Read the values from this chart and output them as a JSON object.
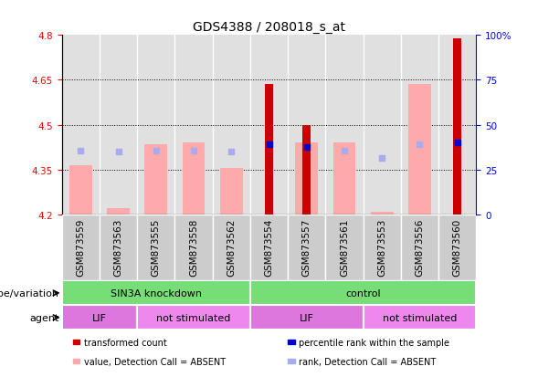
{
  "title": "GDS4388 / 208018_s_at",
  "samples": [
    "GSM873559",
    "GSM873563",
    "GSM873555",
    "GSM873558",
    "GSM873562",
    "GSM873554",
    "GSM873557",
    "GSM873561",
    "GSM873553",
    "GSM873556",
    "GSM873560"
  ],
  "ylim": [
    4.2,
    4.8
  ],
  "yticks": [
    4.2,
    4.35,
    4.5,
    4.65,
    4.8
  ],
  "ytick_labels": [
    "4.2",
    "4.35",
    "4.5",
    "4.65",
    "4.8"
  ],
  "y2ticks": [
    0,
    25,
    50,
    75,
    100
  ],
  "y2tick_labels": [
    "0",
    "25",
    "50",
    "75",
    "100%"
  ],
  "bar_bottom": 4.2,
  "red_bars": {
    "values": [
      null,
      null,
      null,
      null,
      null,
      4.635,
      4.5,
      null,
      null,
      null,
      4.79
    ],
    "color": "#cc0000"
  },
  "pink_bars": {
    "values": [
      4.365,
      4.22,
      4.435,
      4.44,
      4.355,
      null,
      4.44,
      4.44,
      4.21,
      4.635,
      null
    ],
    "color": "#ffaaaa"
  },
  "blue_squares_absent": {
    "indices": [
      0,
      1,
      2,
      3,
      4,
      7,
      8,
      9
    ],
    "values": [
      4.415,
      4.41,
      4.415,
      4.415,
      4.41,
      4.415,
      4.39,
      4.435
    ],
    "color": "#aaaaee"
  },
  "blue_squares_present": {
    "indices": [
      5,
      6,
      10
    ],
    "values": [
      4.435,
      4.425,
      4.44
    ],
    "color": "#0000cc"
  },
  "genotype_groups": [
    {
      "label": "SIN3A knockdown",
      "start": 0,
      "end": 5,
      "color": "#77dd77"
    },
    {
      "label": "control",
      "start": 5,
      "end": 11,
      "color": "#77dd77"
    }
  ],
  "agent_groups": [
    {
      "label": "LIF",
      "start": 0,
      "end": 2,
      "color": "#dd77dd"
    },
    {
      "label": "not stimulated",
      "start": 2,
      "end": 5,
      "color": "#ee88ee"
    },
    {
      "label": "LIF",
      "start": 5,
      "end": 8,
      "color": "#dd77dd"
    },
    {
      "label": "not stimulated",
      "start": 8,
      "end": 11,
      "color": "#ee88ee"
    }
  ],
  "legend_items": [
    {
      "label": "transformed count",
      "color": "#cc0000"
    },
    {
      "label": "percentile rank within the sample",
      "color": "#0000cc"
    },
    {
      "label": "value, Detection Call = ABSENT",
      "color": "#ffaaaa"
    },
    {
      "label": "rank, Detection Call = ABSENT",
      "color": "#aaaaee"
    }
  ],
  "left_label": "genotype/variation",
  "agent_label": "agent",
  "title_fontsize": 10,
  "tick_fontsize": 7.5,
  "label_fontsize": 8,
  "bar_width": 0.6,
  "red_bar_width": 0.22
}
